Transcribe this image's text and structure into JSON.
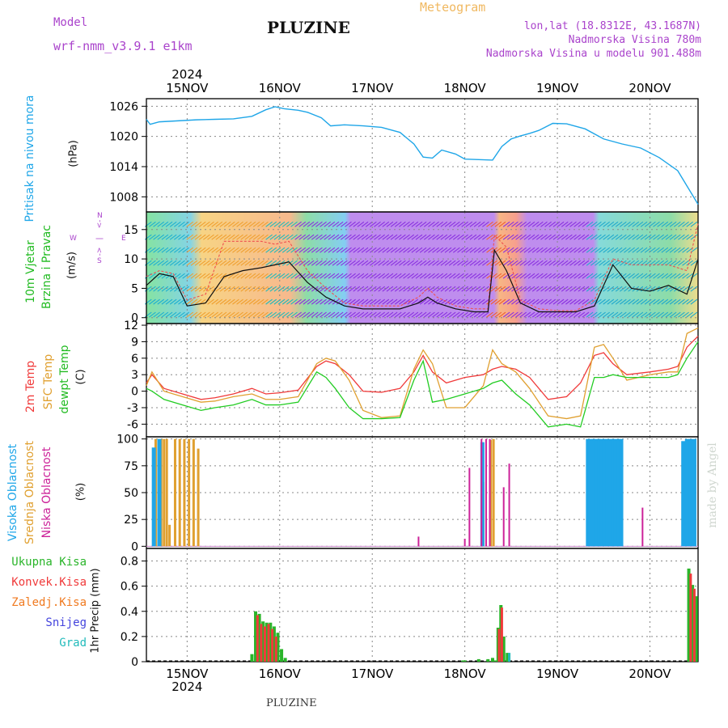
{
  "header": {
    "model_label": "Model",
    "model_name": "wrf-nmm_v3.9.1  e1km",
    "title": "PLUZINE",
    "meteogram": "Meteogram",
    "lonlat": "lon,lat (18.8312E, 43.1687N)",
    "elev": "Nadmorska Visina 780m",
    "elev_model": "Nadmorska Visina u modelu 901.488m"
  },
  "footer": {
    "location": "PLUZINE",
    "watermark": "made by Angel"
  },
  "colors": {
    "pressure": "#1fa6e8",
    "temp2m": "#f03a3a",
    "sfc": "#e0a030",
    "dew": "#22cc22",
    "high_cloud": "#1fa6e8",
    "mid_cloud": "#e0a030",
    "low_cloud": "#cc2299",
    "precip": "#2ab52a",
    "conv": "#f03a3a",
    "frozen": "#f07a20",
    "snow": "#4444dd",
    "hail": "#22bbbb",
    "purple_text": "#aa44cc",
    "orange_text": "#f0b860"
  },
  "panel_labels": {
    "pressure": [
      "Pritisak na nivou mora",
      "(hPa)"
    ],
    "wind": [
      "10m Vjetar",
      "Brzina i Pravac",
      "(m/s)"
    ],
    "temp": [
      "2m Temp",
      "SFC Temp",
      "dewpt Temp",
      "(C)"
    ],
    "cloud": [
      "Visoka Oblacnost",
      "Srednja Oblacnost",
      "Niska Oblacnost",
      "(%)"
    ],
    "precip_legend": [
      "Ukupna Kisa",
      "Konvek.Kisa",
      "Zaledj.Kisa",
      "Snijeg",
      "Grad"
    ],
    "precip_unit": "1hr Precip (mm)",
    "compass": [
      "N",
      "<-",
      "|",
      "->",
      "W",
      "E",
      "S"
    ]
  },
  "chart_data": [
    {
      "type": "line",
      "panel": "pressure",
      "xlabel_days": [
        "15NOV",
        "16NOV",
        "17NOV",
        "18NOV",
        "19NOV",
        "20NOV"
      ],
      "year": "2024",
      "x_range": [
        14.56,
        20.52
      ],
      "yticks": [
        1008,
        1014,
        1020,
        1026
      ],
      "ylim": [
        1005,
        1027.5
      ],
      "series": [
        {
          "x": [
            14.56,
            14.6,
            14.7,
            14.9,
            15.1,
            15.3,
            15.5,
            15.7,
            15.85,
            15.95,
            16.05,
            16.2,
            16.3,
            16.45,
            16.55,
            16.7,
            16.9,
            17.1,
            17.3,
            17.45,
            17.55,
            17.65,
            17.75,
            17.9,
            18.0,
            18.15,
            18.3,
            18.4,
            18.5,
            18.6,
            18.7,
            18.8,
            18.95,
            19.1,
            19.3,
            19.5,
            19.7,
            19.9,
            20.1,
            20.3,
            20.52
          ],
          "y": [
            1023.4,
            1022.4,
            1022.9,
            1023.1,
            1023.3,
            1023.4,
            1023.5,
            1024.0,
            1025.3,
            1025.9,
            1025.5,
            1025.2,
            1024.8,
            1023.7,
            1022.1,
            1022.3,
            1022.1,
            1021.8,
            1020.8,
            1018.5,
            1015.9,
            1015.7,
            1017.3,
            1016.5,
            1015.5,
            1015.4,
            1015.3,
            1018.0,
            1019.5,
            1020.1,
            1020.6,
            1021.2,
            1022.6,
            1022.5,
            1021.5,
            1019.5,
            1018.5,
            1017.7,
            1015.8,
            1013.2,
            1006.5
          ]
        }
      ]
    },
    {
      "type": "line",
      "panel": "wind",
      "yticks": [
        0,
        5,
        10,
        15
      ],
      "ylim": [
        -1,
        18
      ],
      "series": [
        {
          "name": "speed",
          "x": [
            14.56,
            14.7,
            14.85,
            15.0,
            15.2,
            15.4,
            15.6,
            15.8,
            15.95,
            16.1,
            16.3,
            16.5,
            16.7,
            16.9,
            17.1,
            17.3,
            17.5,
            17.6,
            17.7,
            17.9,
            18.1,
            18.25,
            18.32,
            18.45,
            18.6,
            18.8,
            19.0,
            19.2,
            19.4,
            19.6,
            19.8,
            20.0,
            20.2,
            20.4,
            20.52
          ],
          "y": [
            5.5,
            7.5,
            7.0,
            2.0,
            2.5,
            7.0,
            8.0,
            8.5,
            9.0,
            9.5,
            6.0,
            3.5,
            2.0,
            1.5,
            1.5,
            1.5,
            2.5,
            3.5,
            2.5,
            1.5,
            1.0,
            1.0,
            11.5,
            8.0,
            2.5,
            1.0,
            1.0,
            1.0,
            2.0,
            9.0,
            5.0,
            4.5,
            5.5,
            4.0,
            10.0
          ]
        },
        {
          "name": "gust",
          "x": [
            14.56,
            14.7,
            14.85,
            15.0,
            15.2,
            15.4,
            15.6,
            15.8,
            15.95,
            16.1,
            16.3,
            16.5,
            16.7,
            16.9,
            17.1,
            17.3,
            17.5,
            17.6,
            17.7,
            17.9,
            18.1,
            18.25,
            18.32,
            18.45,
            18.6,
            18.8,
            19.0,
            19.2,
            19.4,
            19.6,
            19.8,
            20.0,
            20.2,
            20.4,
            20.52
          ],
          "y": [
            7,
            8,
            7.5,
            3,
            4,
            13,
            13,
            13,
            12.5,
            13,
            8,
            5,
            2.5,
            2,
            2,
            2,
            3.5,
            5,
            3.5,
            2,
            1.5,
            1.5,
            14,
            12,
            3,
            1.5,
            1.2,
            1.2,
            3,
            10,
            9,
            9,
            9,
            8,
            16
          ]
        }
      ]
    },
    {
      "type": "line",
      "panel": "temperature",
      "yticks": [
        -6,
        -3,
        0,
        3,
        6,
        9,
        12
      ],
      "ylim": [
        -8.3,
        12.3
      ],
      "series": [
        {
          "name": "2m Temp",
          "x": [
            14.56,
            14.62,
            14.75,
            14.95,
            15.15,
            15.3,
            15.5,
            15.7,
            15.85,
            16.0,
            16.2,
            16.4,
            16.5,
            16.6,
            16.75,
            16.9,
            17.1,
            17.3,
            17.45,
            17.55,
            17.65,
            17.8,
            18.0,
            18.2,
            18.3,
            18.4,
            18.55,
            18.7,
            18.9,
            19.1,
            19.25,
            19.4,
            19.5,
            19.6,
            19.75,
            20.0,
            20.2,
            20.3,
            20.4,
            20.52
          ],
          "y": [
            1.5,
            3.0,
            0.5,
            -0.5,
            -1.5,
            -1.2,
            -0.5,
            0.5,
            -0.5,
            -0.3,
            0.2,
            4.5,
            5.5,
            5.0,
            3.0,
            0.0,
            -0.2,
            0.5,
            3.5,
            6.5,
            3.5,
            1.5,
            2.5,
            3.0,
            4.0,
            4.5,
            4.0,
            2.5,
            -1.5,
            -1.0,
            1.5,
            6.5,
            7.0,
            5.0,
            3.0,
            3.5,
            4.0,
            4.5,
            8.0,
            10.0
          ]
        },
        {
          "name": "SFC Temp",
          "x": [
            14.56,
            14.62,
            14.75,
            14.95,
            15.15,
            15.3,
            15.5,
            15.7,
            15.85,
            16.0,
            16.2,
            16.4,
            16.5,
            16.6,
            16.75,
            16.9,
            17.1,
            17.3,
            17.45,
            17.55,
            17.65,
            17.8,
            18.0,
            18.2,
            18.3,
            18.4,
            18.55,
            18.7,
            18.9,
            19.1,
            19.25,
            19.4,
            19.5,
            19.6,
            19.75,
            20.0,
            20.2,
            20.3,
            20.4,
            20.52
          ],
          "y": [
            1.0,
            3.5,
            0.0,
            -1.0,
            -2.0,
            -1.8,
            -1.0,
            -0.5,
            -1.5,
            -1.5,
            -1.0,
            5.0,
            6.0,
            5.5,
            2.0,
            -3.5,
            -4.8,
            -4.5,
            4.0,
            7.5,
            5.0,
            -3.0,
            -3.0,
            1.0,
            7.5,
            5.0,
            3.5,
            0.5,
            -4.5,
            -5.0,
            -4.5,
            8.0,
            8.5,
            6.0,
            2.0,
            3.0,
            3.5,
            3.5,
            10.5,
            11.5
          ]
        },
        {
          "name": "dewpt Temp",
          "x": [
            14.56,
            14.62,
            14.75,
            14.95,
            15.15,
            15.3,
            15.5,
            15.7,
            15.85,
            16.0,
            16.2,
            16.4,
            16.5,
            16.6,
            16.75,
            16.9,
            17.1,
            17.3,
            17.45,
            17.55,
            17.65,
            17.8,
            18.0,
            18.2,
            18.3,
            18.4,
            18.55,
            18.7,
            18.9,
            19.1,
            19.25,
            19.4,
            19.5,
            19.6,
            19.75,
            20.0,
            20.2,
            20.3,
            20.4,
            20.52
          ],
          "y": [
            0.5,
            0.0,
            -1.5,
            -2.5,
            -3.5,
            -3.0,
            -2.5,
            -1.5,
            -2.5,
            -2.5,
            -2.0,
            3.5,
            2.5,
            0.5,
            -3.0,
            -5.0,
            -5.0,
            -4.8,
            2.0,
            5.5,
            -2.0,
            -1.5,
            -0.5,
            0.5,
            1.5,
            2.0,
            -0.5,
            -2.5,
            -6.5,
            -6.0,
            -6.5,
            2.5,
            2.5,
            3.0,
            2.5,
            2.5,
            2.5,
            3.0,
            6.0,
            9.0
          ]
        }
      ]
    },
    {
      "type": "bar",
      "panel": "cloud",
      "yticks": [
        0,
        25,
        50,
        75,
        100
      ],
      "ylim": [
        -2,
        102
      ],
      "series": [
        {
          "name": "Srednja Oblacnost",
          "x": [
            14.66,
            14.69,
            14.72,
            14.75,
            14.78,
            14.81,
            14.87,
            14.92,
            14.97,
            15.02,
            15.07,
            15.12,
            18.2,
            18.28,
            18.31
          ],
          "values": [
            100,
            100,
            100,
            100,
            100,
            20,
            100,
            100,
            100,
            100,
            100,
            91,
            60,
            99,
            100
          ]
        },
        {
          "name": "Visoka Oblacnost",
          "x": [
            14.64,
            14.7,
            18.19,
            19.33,
            19.36,
            19.39,
            19.42,
            19.45,
            19.48,
            19.51,
            19.54,
            19.57,
            19.6,
            19.63,
            19.66,
            19.69,
            20.36,
            20.4,
            20.44,
            20.48
          ],
          "values": [
            92,
            100,
            97,
            100,
            100,
            100,
            100,
            100,
            100,
            100,
            100,
            100,
            100,
            100,
            100,
            100,
            98,
            100,
            100,
            100
          ]
        },
        {
          "name": "Niska Oblacnost",
          "x": [
            17.5,
            18.0,
            18.05,
            18.18,
            18.23,
            18.27,
            18.42,
            18.48,
            19.92
          ],
          "values": [
            9,
            7,
            73,
            100,
            100,
            100,
            55,
            77,
            36
          ]
        }
      ]
    },
    {
      "type": "bar",
      "panel": "precip",
      "yticks": [
        0,
        0.2,
        0.4,
        0.6,
        0.8
      ],
      "ylim": [
        0,
        0.9
      ],
      "series": [
        {
          "name": "Ukupna Kisa",
          "x": [
            15.7,
            15.74,
            15.78,
            15.82,
            15.86,
            15.9,
            15.94,
            15.98,
            16.02,
            16.06,
            17.98,
            18.0,
            18.15,
            18.25,
            18.3,
            18.33,
            18.36,
            18.39,
            18.42,
            18.46,
            20.42,
            20.46,
            20.5
          ],
          "values": [
            0.06,
            0.4,
            0.38,
            0.32,
            0.31,
            0.31,
            0.28,
            0.23,
            0.1,
            0.03,
            0.01,
            0.01,
            0.02,
            0.02,
            0.03,
            0.01,
            0.27,
            0.45,
            0.2,
            0.07,
            0.74,
            0.61,
            0.52
          ]
        },
        {
          "name": "Konvek.Kisa",
          "x": [
            15.76,
            15.8,
            15.84,
            15.88,
            15.92,
            15.96,
            18.37,
            18.4,
            20.44,
            20.48
          ],
          "values": [
            0.37,
            0.3,
            0.28,
            0.3,
            0.26,
            0.2,
            0.26,
            0.43,
            0.7,
            0.58
          ]
        },
        {
          "name": "Grad",
          "x": [
            18.48
          ],
          "values": [
            0.07
          ]
        }
      ]
    }
  ]
}
